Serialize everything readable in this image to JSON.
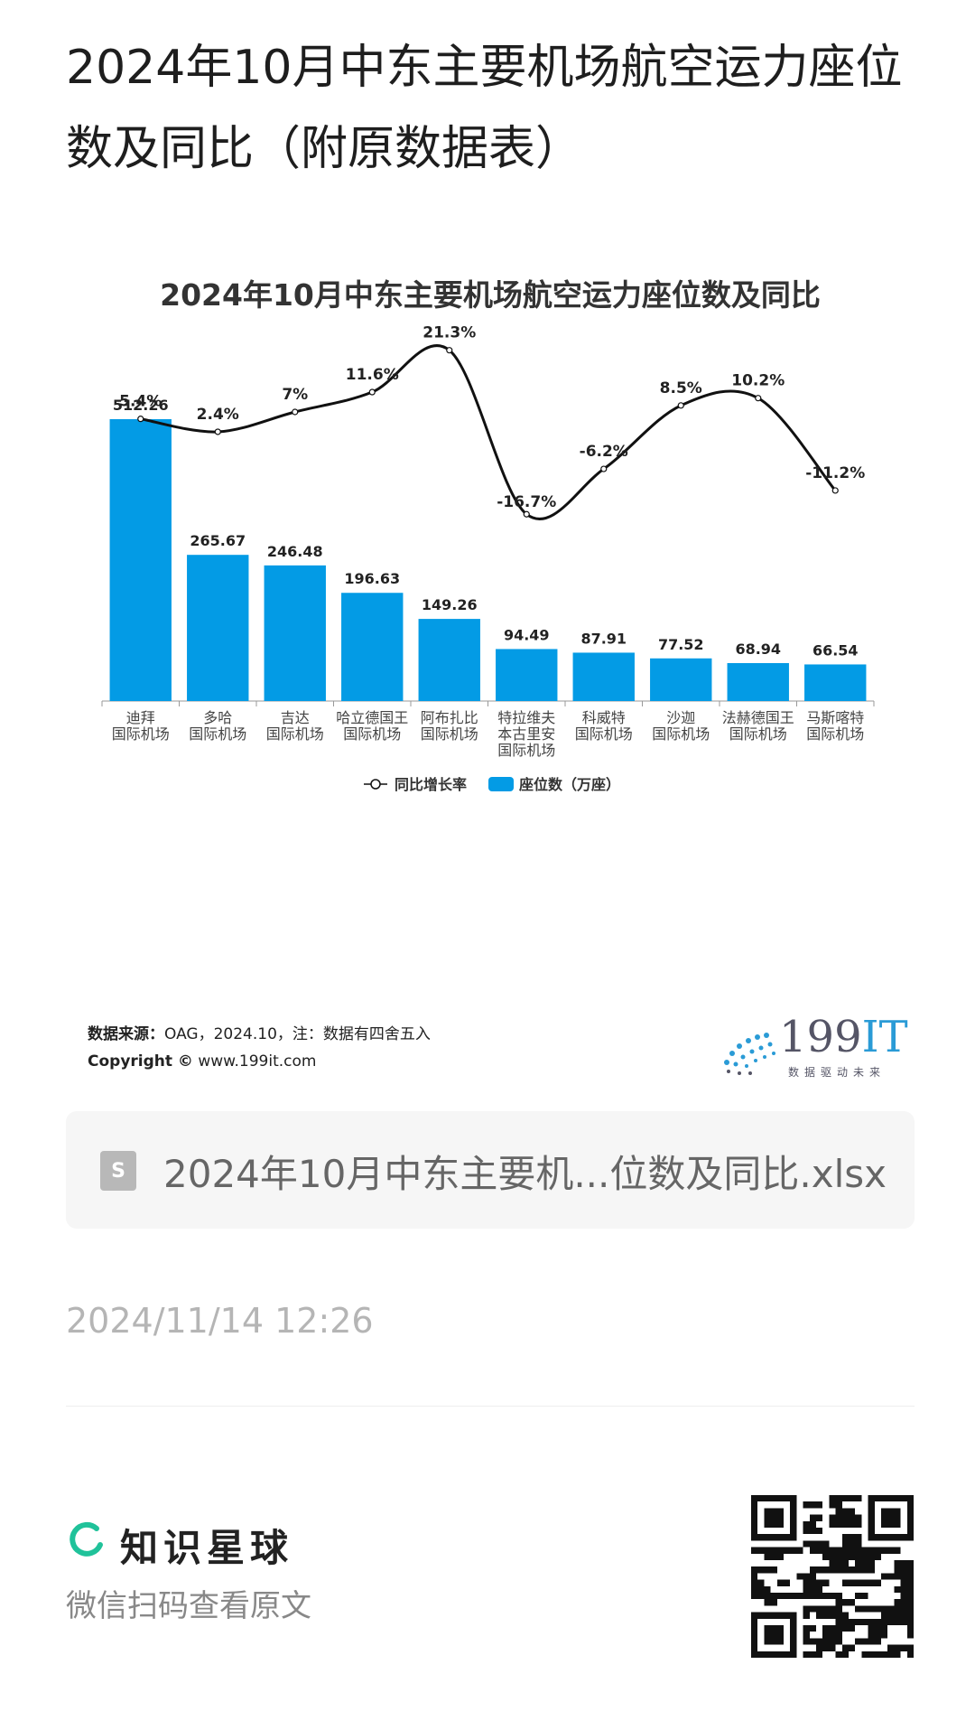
{
  "page": {
    "title": "2024年10月中东主要机场航空运力座位数及同比（附原数据表）"
  },
  "chart_data": {
    "type": "bar",
    "title": "2024年10月中东主要机场航空运力座位数及同比",
    "categories": [
      [
        "迪拜",
        "国际机场"
      ],
      [
        "多哈",
        "国际机场"
      ],
      [
        "吉达",
        "国际机场"
      ],
      [
        "哈立德国王",
        "国际机场"
      ],
      [
        "阿布扎比",
        "国际机场"
      ],
      [
        "特拉维夫",
        "本古里安",
        "国际机场"
      ],
      [
        "科威特",
        "国际机场"
      ],
      [
        "沙迦",
        "国际机场"
      ],
      [
        "法赫德国王",
        "国际机场"
      ],
      [
        "马斯喀特",
        "国际机场"
      ]
    ],
    "series": [
      {
        "name": "座位数（万座）",
        "type": "bar",
        "values": [
          512.26,
          265.67,
          246.48,
          196.63,
          149.26,
          94.49,
          87.91,
          77.52,
          68.94,
          66.54
        ],
        "labels": [
          "512.26",
          "265.67",
          "246.48",
          "196.63",
          "149.26",
          "94.49",
          "87.91",
          "77.52",
          "68.94",
          "66.54"
        ],
        "color": "#039be5"
      },
      {
        "name": "同比增长率",
        "type": "line",
        "values": [
          5.4,
          2.4,
          7,
          11.6,
          21.3,
          -16.7,
          -6.2,
          8.5,
          10.2,
          -11.2
        ],
        "labels": [
          "5.4%",
          "2.4%",
          "7%",
          "11.6%",
          "21.3%",
          "-16.7%",
          "-6.2%",
          "8.5%",
          "10.2%",
          "-11.2%"
        ],
        "color": "#111111"
      }
    ],
    "legend_position": "bottom"
  },
  "source": {
    "label": "数据来源：",
    "text": "OAG，2024.10，注：数据有四舍五入",
    "copyright": "Copyright ©",
    "site": "www.199it.com"
  },
  "logo": {
    "main": "199",
    "accent": "IT",
    "tagline": "数据驱动未来"
  },
  "file": {
    "icon": "S",
    "name": "2024年10月中东主要机...位数及同比.xlsx"
  },
  "timestamp": "2024/11/14 12:26",
  "footer": {
    "brand": "知识星球",
    "hint": "微信扫码查看原文",
    "brand_color": "#20c29a"
  }
}
